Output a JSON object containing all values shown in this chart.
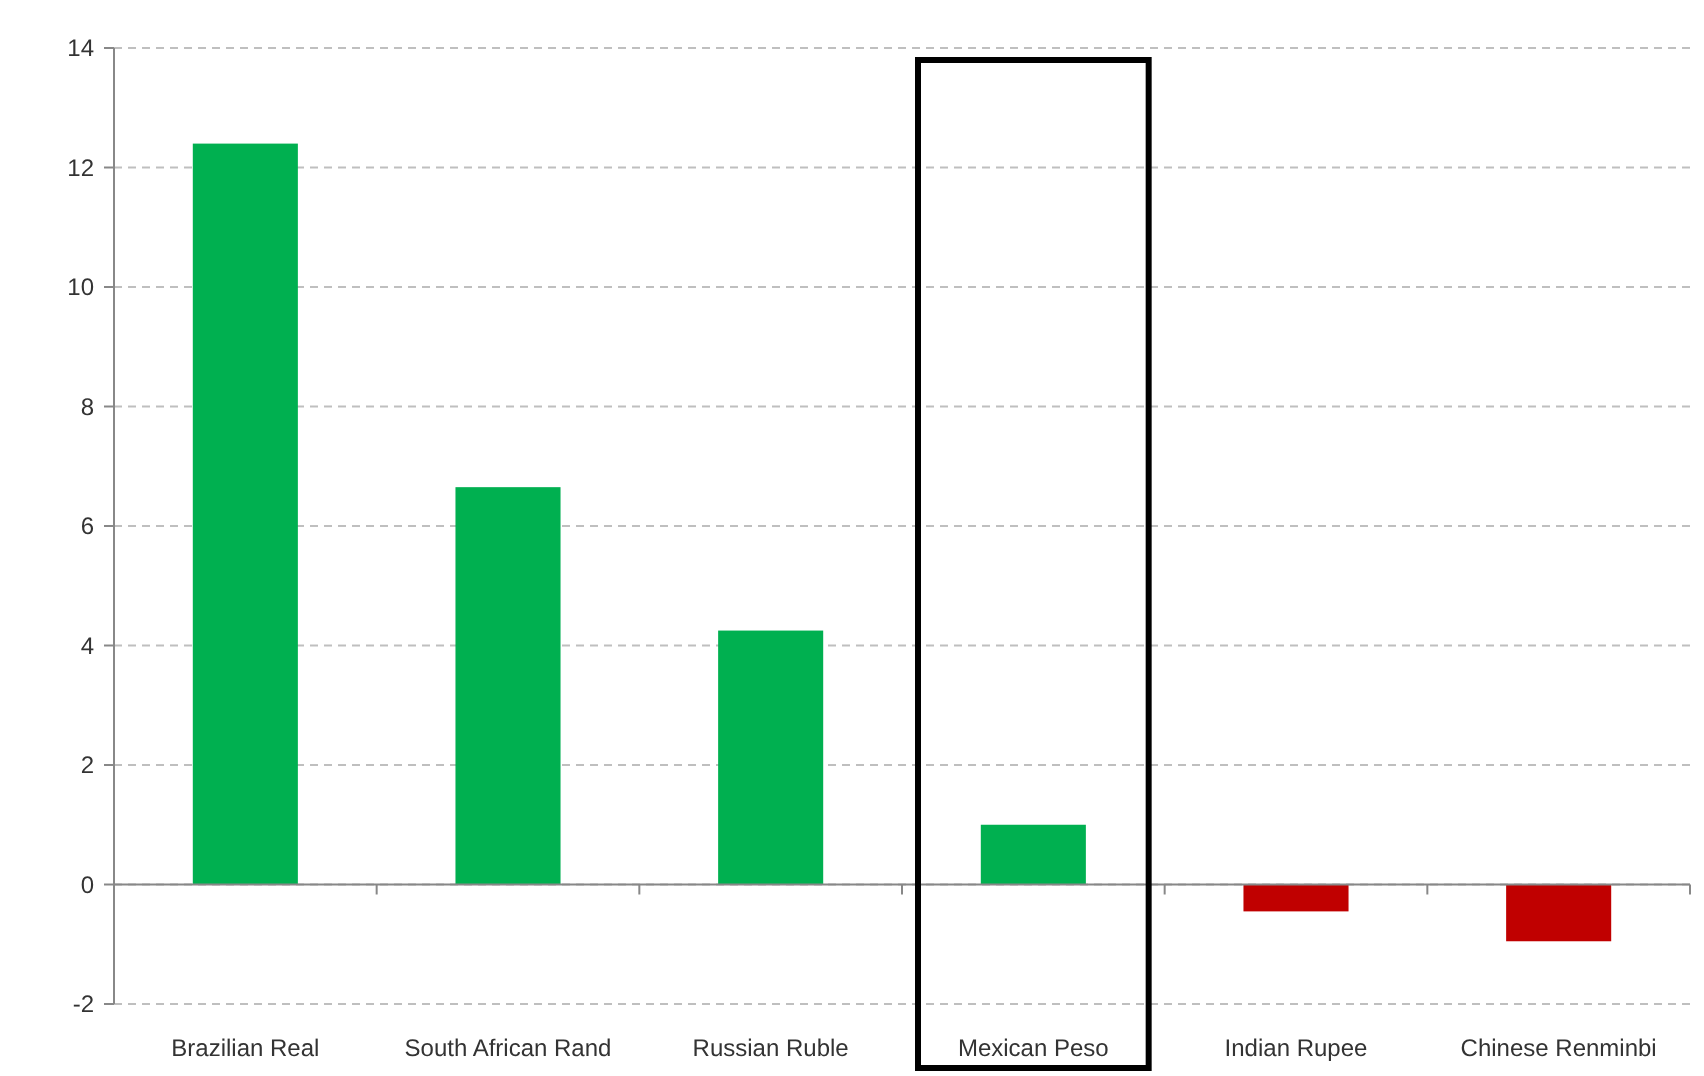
{
  "chart_data": {
    "type": "bar",
    "categories": [
      "Brazilian Real",
      "South African Rand",
      "Russian Ruble",
      "Mexican Peso",
      "Indian Rupee",
      "Chinese Renminbi"
    ],
    "values": [
      12.4,
      6.65,
      4.25,
      1.0,
      -0.45,
      -0.95
    ],
    "colors": [
      "#00b050",
      "#00b050",
      "#00b050",
      "#00b050",
      "#c00000",
      "#c00000"
    ],
    "ylim": [
      -2,
      14
    ],
    "yticks": [
      -2,
      0,
      2,
      4,
      6,
      8,
      10,
      12,
      14
    ],
    "grid": "y"
  }
}
